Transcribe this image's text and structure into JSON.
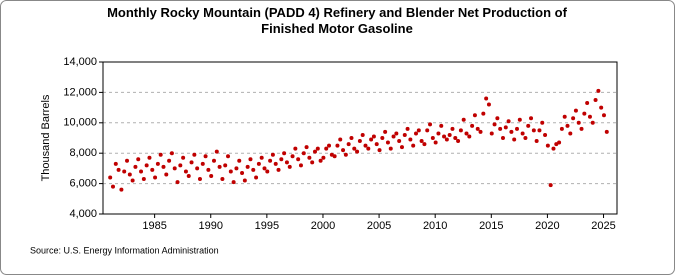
{
  "chart_data": {
    "type": "scatter",
    "title": "Monthly Rocky Mountain (PADD 4) Refinery and Blender Net Production of Finished Motor Gasoline",
    "ylabel": "Thousand Barrels",
    "source": "Source: U.S. Energy Information Administration",
    "color": "#c00000",
    "grid": true,
    "xlim": [
      1980.4,
      2026.2
    ],
    "ylim": [
      4000,
      14000
    ],
    "xticks": [
      1985,
      1990,
      1995,
      2000,
      2005,
      2010,
      2015,
      2020,
      2025
    ],
    "yticks": [
      {
        "value": 4000,
        "label": "4,000"
      },
      {
        "value": 6000,
        "label": "6,000"
      },
      {
        "value": 8000,
        "label": "8,000"
      },
      {
        "value": 10000,
        "label": "10,000"
      },
      {
        "value": 12000,
        "label": "12,000"
      },
      {
        "value": 14000,
        "label": "14,000"
      }
    ],
    "x": [
      1981.04,
      1981.29,
      1981.54,
      1981.79,
      1982.04,
      1982.29,
      1982.54,
      1982.79,
      1983.04,
      1983.29,
      1983.54,
      1983.79,
      1984.04,
      1984.29,
      1984.54,
      1984.79,
      1985.04,
      1985.29,
      1985.54,
      1985.79,
      1986.04,
      1986.29,
      1986.54,
      1986.79,
      1987.04,
      1987.29,
      1987.54,
      1987.79,
      1988.04,
      1988.29,
      1988.54,
      1988.79,
      1989.04,
      1989.29,
      1989.54,
      1989.79,
      1990.04,
      1990.29,
      1990.54,
      1990.79,
      1991.04,
      1991.29,
      1991.54,
      1991.79,
      1992.04,
      1992.29,
      1992.54,
      1992.79,
      1993.04,
      1993.29,
      1993.54,
      1993.79,
      1994.04,
      1994.29,
      1994.54,
      1994.79,
      1995.04,
      1995.29,
      1995.54,
      1995.79,
      1996.04,
      1996.29,
      1996.54,
      1996.79,
      1997.04,
      1997.29,
      1997.54,
      1997.79,
      1998.04,
      1998.29,
      1998.54,
      1998.79,
      1999.04,
      1999.29,
      1999.54,
      1999.79,
      2000.04,
      2000.29,
      2000.54,
      2000.79,
      2001.04,
      2001.29,
      2001.54,
      2001.79,
      2002.04,
      2002.29,
      2002.54,
      2002.79,
      2003.04,
      2003.29,
      2003.54,
      2003.79,
      2004.04,
      2004.29,
      2004.54,
      2004.79,
      2005.04,
      2005.29,
      2005.54,
      2005.79,
      2006.04,
      2006.29,
      2006.54,
      2006.79,
      2007.04,
      2007.29,
      2007.54,
      2007.79,
      2008.04,
      2008.29,
      2008.54,
      2008.79,
      2009.04,
      2009.29,
      2009.54,
      2009.79,
      2010.04,
      2010.29,
      2010.54,
      2010.79,
      2011.04,
      2011.29,
      2011.54,
      2011.79,
      2012.04,
      2012.29,
      2012.54,
      2012.79,
      2013.04,
      2013.29,
      2013.54,
      2013.79,
      2014.04,
      2014.29,
      2014.54,
      2014.79,
      2015.04,
      2015.29,
      2015.54,
      2015.79,
      2016.04,
      2016.29,
      2016.54,
      2016.79,
      2017.04,
      2017.29,
      2017.54,
      2017.79,
      2018.04,
      2018.29,
      2018.54,
      2018.79,
      2019.04,
      2019.29,
      2019.54,
      2019.79,
      2020.04,
      2020.29,
      2020.54,
      2020.79,
      2021.04,
      2021.29,
      2021.54,
      2021.79,
      2022.04,
      2022.29,
      2022.54,
      2022.79,
      2023.04,
      2023.29,
      2023.54,
      2023.79,
      2024.04,
      2024.29,
      2024.54,
      2024.79,
      2025.04,
      2025.29
    ],
    "values": [
      6400,
      5800,
      7300,
      6900,
      5600,
      6800,
      7500,
      6600,
      6200,
      7100,
      7600,
      6800,
      6300,
      7200,
      7700,
      6900,
      6400,
      7300,
      7900,
      7100,
      6600,
      7500,
      8000,
      7000,
      6100,
      7200,
      7700,
      6800,
      6500,
      7400,
      7900,
      7000,
      6300,
      7300,
      7800,
      6900,
      6500,
      7500,
      8100,
      7100,
      6300,
      7200,
      7800,
      6800,
      6100,
      7000,
      7500,
      6700,
      6200,
      7100,
      7600,
      6900,
      6400,
      7300,
      7700,
      7000,
      6800,
      7500,
      7900,
      7300,
      6900,
      7600,
      8000,
      7400,
      7100,
      7800,
      8300,
      7600,
      7200,
      8000,
      8400,
      7700,
      7400,
      8100,
      8300,
      7500,
      7700,
      8300,
      8500,
      7900,
      7800,
      8500,
      8900,
      8200,
      7900,
      8600,
      9000,
      8300,
      8100,
      8800,
      9200,
      8500,
      8300,
      8900,
      9100,
      8600,
      8200,
      9000,
      9400,
      8700,
      8300,
      9100,
      9300,
      8800,
      8400,
      9200,
      9600,
      8900,
      8500,
      9300,
      9500,
      8800,
      8600,
      9500,
      9900,
      9000,
      8700,
      9300,
      9800,
      9100,
      8900,
      9200,
      9600,
      9000,
      8800,
      9500,
      10200,
      9300,
      9100,
      9800,
      10500,
      9600,
      9400,
      10600,
      11600,
      11200,
      9300,
      9900,
      10300,
      9600,
      9000,
      9700,
      10100,
      9400,
      8900,
      9600,
      10200,
      9300,
      9000,
      9800,
      10300,
      9500,
      8800,
      9500,
      10000,
      9200,
      8500,
      5900,
      8300,
      8600,
      8700,
      9600,
      10400,
      9800,
      9300,
      10300,
      10800,
      10000,
      9600,
      10600,
      11300,
      10400,
      10000,
      11500,
      12100,
      11000,
      10500,
      9400
    ]
  }
}
